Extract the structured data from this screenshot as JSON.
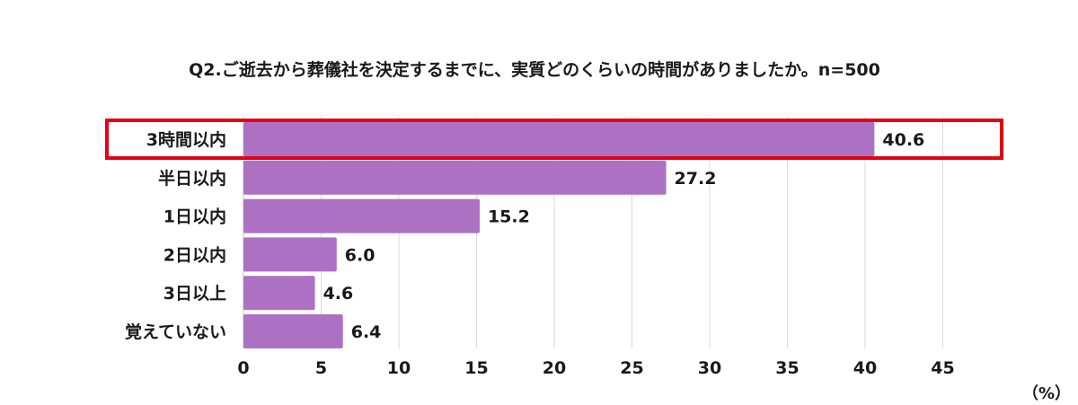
{
  "chart_data": {
    "type": "bar",
    "orientation": "horizontal",
    "title": "Q2.ご逝去から葬儀社を決定するまでに、実質どのくらいの時間がありましたか。n=500",
    "unit_label": "（%）",
    "categories": [
      "3時間以内",
      "半日以内",
      "1日以内",
      "2日以内",
      "3日以上",
      "覚えていない"
    ],
    "values": [
      40.6,
      27.2,
      15.2,
      6.0,
      4.6,
      6.4
    ],
    "value_labels": [
      "40.6",
      "27.2",
      "15.2",
      "6.0",
      "4.6",
      "6.4"
    ],
    "xlim": [
      0,
      48
    ],
    "xticks": [
      0,
      5,
      10,
      15,
      20,
      25,
      30,
      35,
      40,
      45
    ],
    "grid": true,
    "highlight_category": "3時間以内",
    "bar_color": "#ad71c3",
    "highlight_color": "#e60012"
  }
}
